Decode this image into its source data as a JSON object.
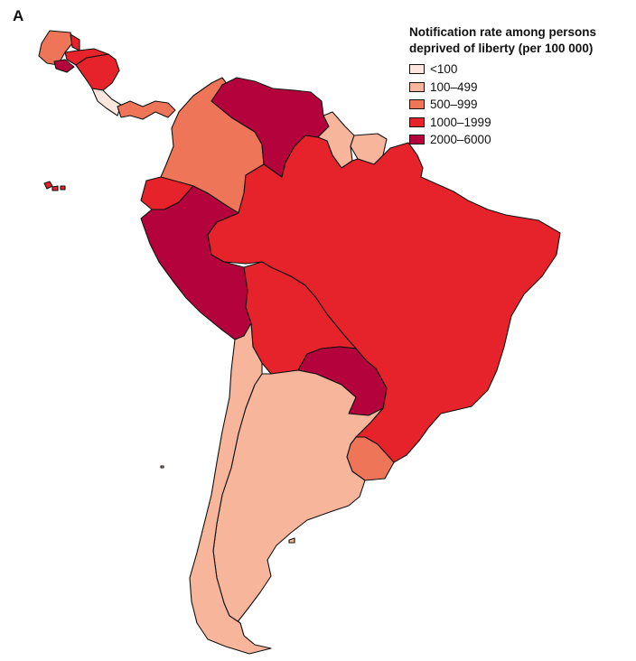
{
  "panel_label": "A",
  "legend": {
    "title_line1": "Notification rate among persons",
    "title_line2": "deprived of liberty (per 100 000)",
    "items": [
      {
        "label": "<100",
        "color": "#fde6dd"
      },
      {
        "label": "100–499",
        "color": "#f7b59b"
      },
      {
        "label": "500–999",
        "color": "#ef7558"
      },
      {
        "label": "1000–1999",
        "color": "#e6222a"
      },
      {
        "label": "2000–6000",
        "color": "#b3023c"
      }
    ]
  },
  "regions": [
    {
      "name": "guatemala",
      "class": 2
    },
    {
      "name": "belize",
      "class": 3
    },
    {
      "name": "el-salvador",
      "class": 4
    },
    {
      "name": "honduras",
      "class": 3
    },
    {
      "name": "nicaragua",
      "class": 3
    },
    {
      "name": "costa-rica",
      "class": 0
    },
    {
      "name": "panama",
      "class": 2
    },
    {
      "name": "colombia",
      "class": 2
    },
    {
      "name": "venezuela",
      "class": 4
    },
    {
      "name": "guyana",
      "class": 1
    },
    {
      "name": "suriname",
      "class": 1
    },
    {
      "name": "ecuador",
      "class": 3
    },
    {
      "name": "galapagos",
      "class": 3
    },
    {
      "name": "peru",
      "class": 4
    },
    {
      "name": "brazil",
      "class": 3
    },
    {
      "name": "bolivia",
      "class": 3
    },
    {
      "name": "paraguay",
      "class": 4
    },
    {
      "name": "chile",
      "class": 1
    },
    {
      "name": "argentina",
      "class": 1
    },
    {
      "name": "uruguay",
      "class": 2
    }
  ]
}
